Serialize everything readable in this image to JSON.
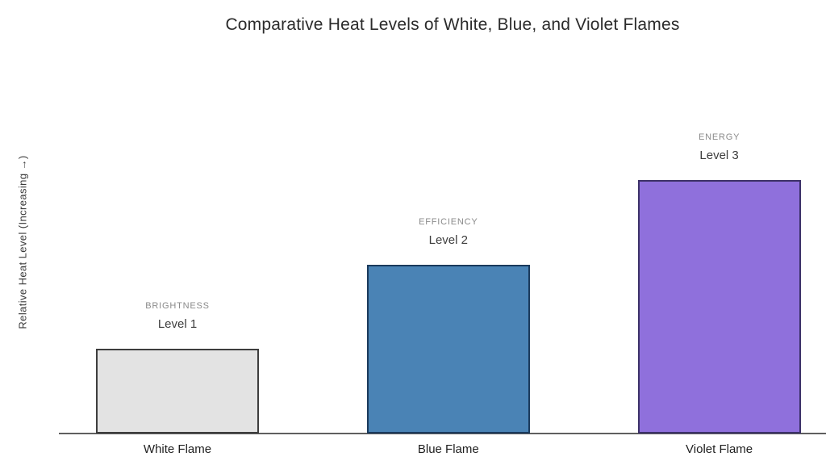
{
  "chart_data": {
    "type": "bar",
    "title": "Comparative Heat Levels of White, Blue, and Violet Flames",
    "xlabel": "",
    "ylabel": "Relative Heat Level (Increasing →)",
    "categories": [
      "White Flame",
      "Blue Flame",
      "Violet Flame"
    ],
    "values": [
      1,
      2,
      3
    ],
    "ylim": [
      0,
      3.3
    ],
    "grid": false,
    "legend": "none",
    "yticks": "none",
    "bar_annotations": [
      {
        "caption": "BRIGHTNESS",
        "level": "Level 1"
      },
      {
        "caption": "EFFICIENCY",
        "level": "Level 2"
      },
      {
        "caption": "ENERGY",
        "level": "Level 3"
      }
    ],
    "bar_fill_colors": [
      "#e3e3e3",
      "#4a83b5",
      "#8f70dc"
    ],
    "bar_border_colors": [
      "#3d3d3d",
      "#1b3a5c",
      "#3c3168"
    ],
    "axis_line_color": "#5f5f5f",
    "caption_text_color": "#8a8a8a",
    "level_text_color": "#3d3d3d"
  }
}
